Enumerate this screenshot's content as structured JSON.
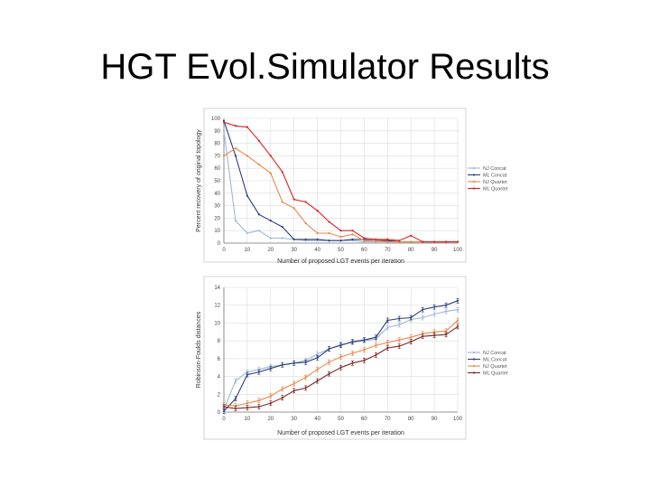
{
  "slide": {
    "title": "HGT Evol.Simulator Results"
  },
  "chart_data": [
    {
      "type": "line",
      "xlabel": "Number of proposed LGT events per iteration",
      "ylabel": "Percent recovery of original topology",
      "xlim": [
        0,
        100
      ],
      "ylim": [
        0,
        100
      ],
      "xticks": [
        0,
        10,
        20,
        30,
        40,
        50,
        60,
        70,
        80,
        90,
        100
      ],
      "yticks": [
        0,
        10,
        20,
        30,
        40,
        50,
        60,
        70,
        80,
        90,
        100
      ],
      "grid": true,
      "legend": "right",
      "series": [
        {
          "name": "NJ Concat",
          "color": "#9fb6da",
          "x": [
            0,
            5,
            10,
            15,
            20,
            25,
            30,
            35,
            40,
            45,
            50,
            55,
            60,
            65,
            70,
            75,
            80,
            85,
            90,
            95,
            100
          ],
          "y": [
            90,
            18,
            8,
            10,
            4,
            4,
            3,
            2,
            2,
            2,
            2,
            2,
            1,
            1,
            1,
            1,
            1,
            1,
            1,
            1,
            1
          ]
        },
        {
          "name": "ML Concat",
          "color": "#2d3f78",
          "x": [
            0,
            5,
            10,
            15,
            20,
            25,
            30,
            35,
            40,
            45,
            50,
            55,
            60,
            65,
            70,
            75,
            80,
            85,
            90,
            95,
            100
          ],
          "y": [
            98,
            70,
            38,
            23,
            18,
            13,
            3,
            3,
            3,
            2,
            2,
            3,
            3,
            2,
            2,
            1,
            1,
            1,
            1,
            1,
            1
          ]
        },
        {
          "name": "NJ Quartet",
          "color": "#e8884a",
          "x": [
            0,
            5,
            10,
            15,
            20,
            25,
            30,
            35,
            40,
            45,
            50,
            55,
            60,
            65,
            70,
            75,
            80,
            85,
            90,
            95,
            100
          ],
          "y": [
            70,
            76,
            70,
            63,
            56,
            33,
            28,
            16,
            8,
            8,
            5,
            7,
            2,
            2,
            1,
            1,
            1,
            1,
            1,
            1,
            1
          ]
        },
        {
          "name": "ML Quartet",
          "color": "#e02020",
          "x": [
            0,
            5,
            10,
            15,
            20,
            25,
            30,
            35,
            40,
            45,
            50,
            55,
            60,
            65,
            70,
            75,
            80,
            85,
            90,
            95,
            100
          ],
          "y": [
            97,
            94,
            93,
            82,
            70,
            57,
            35,
            33,
            26,
            17,
            10,
            10,
            4,
            3,
            3,
            2,
            6,
            1,
            1,
            1,
            1
          ]
        }
      ]
    },
    {
      "type": "line",
      "xlabel": "Number of proposed LGT events per iteration",
      "ylabel": "Robinson-Foulds distances",
      "xlim": [
        0,
        100
      ],
      "ylim": [
        0,
        14
      ],
      "xticks": [
        0,
        10,
        20,
        30,
        40,
        50,
        60,
        70,
        80,
        90,
        100
      ],
      "yticks": [
        0,
        2,
        4,
        6,
        8,
        10,
        12,
        14
      ],
      "grid": true,
      "legend": "right",
      "error_bars": true,
      "series": [
        {
          "name": "NJ Concat",
          "color": "#9fb6da",
          "x": [
            0,
            5,
            10,
            15,
            20,
            25,
            30,
            35,
            40,
            45,
            50,
            55,
            60,
            65,
            70,
            75,
            80,
            85,
            90,
            95,
            100
          ],
          "y": [
            0.3,
            3.5,
            4.5,
            4.8,
            5.1,
            5.3,
            5.5,
            5.8,
            6.5,
            7.1,
            7.6,
            7.8,
            8,
            8.2,
            9.5,
            9.8,
            10.4,
            10.6,
            11,
            11.3,
            11.5
          ]
        },
        {
          "name": "ML Concat",
          "color": "#2d3f78",
          "x": [
            0,
            5,
            10,
            15,
            20,
            25,
            30,
            35,
            40,
            45,
            50,
            55,
            60,
            65,
            70,
            75,
            80,
            85,
            90,
            95,
            100
          ],
          "y": [
            0.1,
            1.5,
            4.2,
            4.5,
            4.9,
            5.3,
            5.5,
            5.6,
            6.1,
            7.1,
            7.5,
            7.9,
            8.1,
            8.4,
            10.3,
            10.5,
            10.6,
            11.5,
            11.8,
            12,
            12.5
          ]
        },
        {
          "name": "NJ Quartet",
          "color": "#e8884a",
          "x": [
            0,
            5,
            10,
            15,
            20,
            25,
            30,
            35,
            40,
            45,
            50,
            55,
            60,
            65,
            70,
            75,
            80,
            85,
            90,
            95,
            100
          ],
          "y": [
            0.8,
            0.7,
            1,
            1.3,
            1.8,
            2.6,
            3.2,
            3.9,
            4.8,
            5.6,
            6.2,
            6.6,
            7,
            7.5,
            7.8,
            8.1,
            8.4,
            8.8,
            9,
            9.1,
            10.3
          ]
        },
        {
          "name": "ML Quartet",
          "color": "#7a2a28",
          "x": [
            0,
            5,
            10,
            15,
            20,
            25,
            30,
            35,
            40,
            45,
            50,
            55,
            60,
            65,
            70,
            75,
            80,
            85,
            90,
            95,
            100
          ],
          "y": [
            0.6,
            0.4,
            0.5,
            0.6,
            1,
            1.6,
            2.4,
            2.7,
            3.5,
            4.3,
            5,
            5.5,
            5.8,
            6.4,
            7.2,
            7.4,
            7.9,
            8.5,
            8.6,
            8.7,
            9.6
          ]
        }
      ]
    }
  ]
}
